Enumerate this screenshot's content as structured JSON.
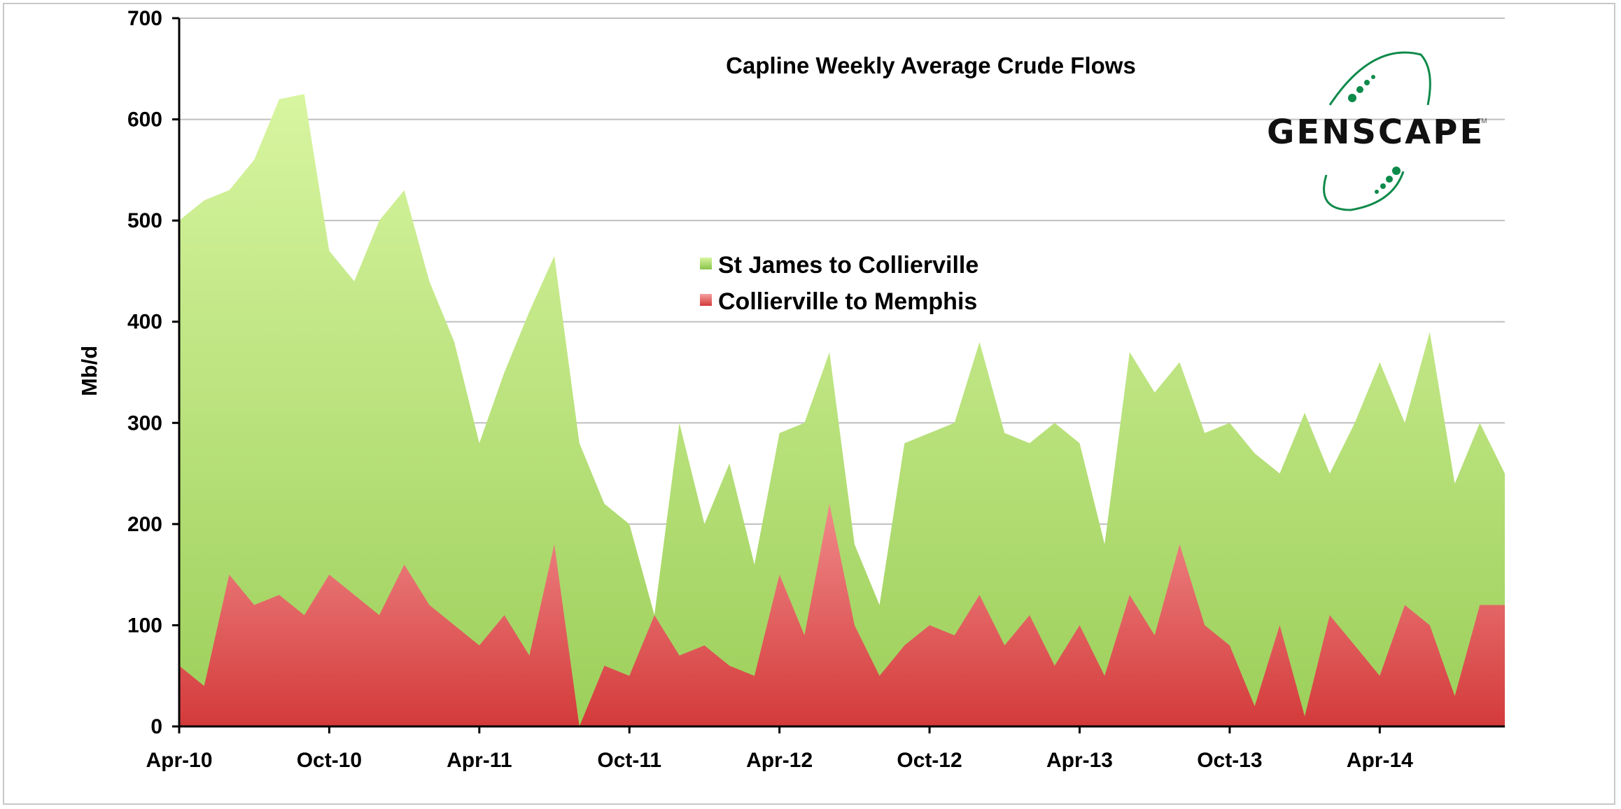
{
  "chart_data": {
    "type": "area",
    "title": "Capline Weekly Average Crude Flows",
    "xlabel": "",
    "ylabel": "Mb/d",
    "ylim": [
      0,
      700
    ],
    "yticks": [
      0,
      100,
      200,
      300,
      400,
      500,
      600,
      700
    ],
    "xlim": [
      "Apr-10",
      "Jul-14"
    ],
    "xticks": [
      "Apr-10",
      "Oct-10",
      "Apr-11",
      "Oct-11",
      "Apr-12",
      "Oct-12",
      "Apr-13",
      "Oct-13",
      "Apr-14"
    ],
    "grid": true,
    "legend_position": "center-top",
    "series": [
      {
        "name": "St James to Collierville",
        "color": "#a8d86a",
        "points": [
          [
            "Apr-10",
            500
          ],
          [
            "May-10",
            520
          ],
          [
            "Jun-10",
            530
          ],
          [
            "Jul-10",
            560
          ],
          [
            "Aug-10",
            620
          ],
          [
            "Sep-10",
            625
          ],
          [
            "Oct-10",
            470
          ],
          [
            "Nov-10",
            440
          ],
          [
            "Dec-10",
            500
          ],
          [
            "Jan-11",
            530
          ],
          [
            "Feb-11",
            440
          ],
          [
            "Mar-11",
            380
          ],
          [
            "Apr-11",
            280
          ],
          [
            "May-11",
            350
          ],
          [
            "Jun-11",
            410
          ],
          [
            "Jul-11",
            465
          ],
          [
            "Aug-11",
            280
          ],
          [
            "Sep-11",
            220
          ],
          [
            "Oct-11",
            200
          ],
          [
            "Nov-11",
            110
          ],
          [
            "Dec-11",
            300
          ],
          [
            "Jan-12",
            200
          ],
          [
            "Feb-12",
            260
          ],
          [
            "Mar-12",
            160
          ],
          [
            "Apr-12",
            290
          ],
          [
            "May-12",
            300
          ],
          [
            "Jun-12",
            370
          ],
          [
            "Jul-12",
            180
          ],
          [
            "Aug-12",
            120
          ],
          [
            "Sep-12",
            280
          ],
          [
            "Oct-12",
            290
          ],
          [
            "Nov-12",
            300
          ],
          [
            "Dec-12",
            380
          ],
          [
            "Jan-13",
            290
          ],
          [
            "Feb-13",
            280
          ],
          [
            "Mar-13",
            300
          ],
          [
            "Apr-13",
            280
          ],
          [
            "May-13",
            180
          ],
          [
            "Jun-13",
            370
          ],
          [
            "Jul-13",
            330
          ],
          [
            "Aug-13",
            360
          ],
          [
            "Sep-13",
            290
          ],
          [
            "Oct-13",
            300
          ],
          [
            "Nov-13",
            270
          ],
          [
            "Dec-13",
            250
          ],
          [
            "Jan-14",
            310
          ],
          [
            "Feb-14",
            250
          ],
          [
            "Mar-14",
            300
          ],
          [
            "Apr-14",
            360
          ],
          [
            "May-14",
            300
          ],
          [
            "Jun-14",
            390
          ],
          [
            "Jul-14",
            240
          ],
          [
            "Aug-14",
            300
          ],
          [
            "Aug-14b",
            250
          ]
        ]
      },
      {
        "name": "Collierville to Memphis",
        "color": "#e06060",
        "points": [
          [
            "Apr-10",
            60
          ],
          [
            "May-10",
            40
          ],
          [
            "Jun-10",
            150
          ],
          [
            "Jul-10",
            120
          ],
          [
            "Aug-10",
            130
          ],
          [
            "Sep-10",
            110
          ],
          [
            "Oct-10",
            150
          ],
          [
            "Nov-10",
            130
          ],
          [
            "Dec-10",
            110
          ],
          [
            "Jan-11",
            160
          ],
          [
            "Feb-11",
            120
          ],
          [
            "Mar-11",
            100
          ],
          [
            "Apr-11",
            80
          ],
          [
            "May-11",
            110
          ],
          [
            "Jun-11",
            70
          ],
          [
            "Jul-11",
            180
          ],
          [
            "Aug-11",
            0
          ],
          [
            "Sep-11",
            60
          ],
          [
            "Oct-11",
            50
          ],
          [
            "Nov-11",
            110
          ],
          [
            "Dec-11",
            70
          ],
          [
            "Jan-12",
            80
          ],
          [
            "Feb-12",
            60
          ],
          [
            "Mar-12",
            50
          ],
          [
            "Apr-12",
            150
          ],
          [
            "May-12",
            90
          ],
          [
            "Jun-12",
            220
          ],
          [
            "Jul-12",
            100
          ],
          [
            "Aug-12",
            50
          ],
          [
            "Sep-12",
            80
          ],
          [
            "Oct-12",
            100
          ],
          [
            "Nov-12",
            90
          ],
          [
            "Dec-12",
            130
          ],
          [
            "Jan-13",
            80
          ],
          [
            "Feb-13",
            110
          ],
          [
            "Mar-13",
            60
          ],
          [
            "Apr-13",
            100
          ],
          [
            "May-13",
            50
          ],
          [
            "Jun-13",
            130
          ],
          [
            "Jul-13",
            90
          ],
          [
            "Aug-13",
            180
          ],
          [
            "Sep-13",
            100
          ],
          [
            "Oct-13",
            80
          ],
          [
            "Nov-13",
            20
          ],
          [
            "Dec-13",
            100
          ],
          [
            "Jan-14",
            10
          ],
          [
            "Feb-14",
            110
          ],
          [
            "Mar-14",
            80
          ],
          [
            "Apr-14",
            50
          ],
          [
            "May-14",
            120
          ],
          [
            "Jun-14",
            100
          ],
          [
            "Jul-14",
            30
          ],
          [
            "Aug-14",
            120
          ],
          [
            "Aug-14b",
            120
          ]
        ]
      }
    ]
  },
  "logo": {
    "text": "GENSCAPE",
    "color": "#0e8a4a"
  }
}
